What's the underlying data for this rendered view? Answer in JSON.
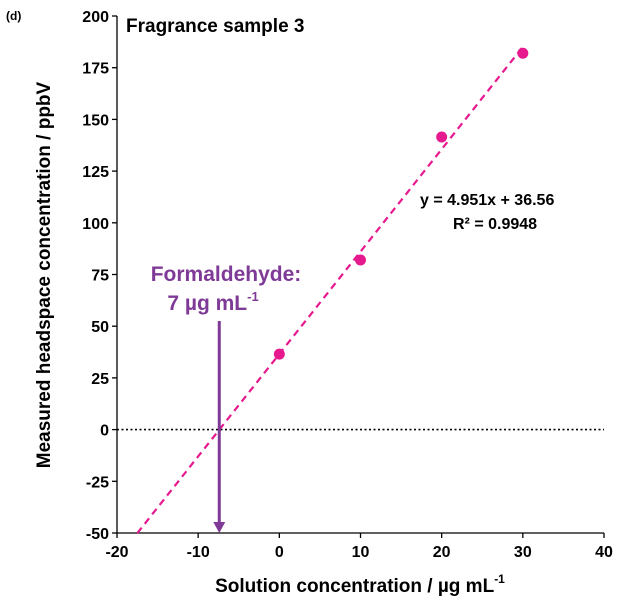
{
  "panel_label": "(d)",
  "chart_data": {
    "type": "scatter",
    "title": "Fragrance sample 3",
    "xlabel": "Solution concentration / µg mL",
    "xlabel_sup": "-1",
    "ylabel": "Measured headspace concentration / ppbV",
    "xlim": [
      -20,
      40
    ],
    "ylim": [
      -50,
      200
    ],
    "xticks": [
      -20,
      -10,
      0,
      10,
      20,
      30,
      40
    ],
    "yticks": [
      -50,
      -25,
      0,
      25,
      50,
      75,
      100,
      125,
      150,
      175,
      200
    ],
    "points": [
      {
        "x": 0,
        "y": 36.5
      },
      {
        "x": 10,
        "y": 82
      },
      {
        "x": 20,
        "y": 141.5
      },
      {
        "x": 30,
        "y": 182
      }
    ],
    "fit": {
      "slope": 4.951,
      "intercept": 36.56,
      "x_start": -17.5,
      "x_end": 30
    },
    "equation": "y = 4.951x + 36.56",
    "r_squared": "R² = 0.9948",
    "zero_line": true,
    "annotation": {
      "line1": "Formaldehyde:",
      "line2": "7 µg mL",
      "line2_sup": "-1",
      "arrow_x": -7.4
    },
    "colors": {
      "points": "#e6198f",
      "fit_line": "#e6198f",
      "annotation": "#7e3a96",
      "axis": "#000000"
    }
  }
}
